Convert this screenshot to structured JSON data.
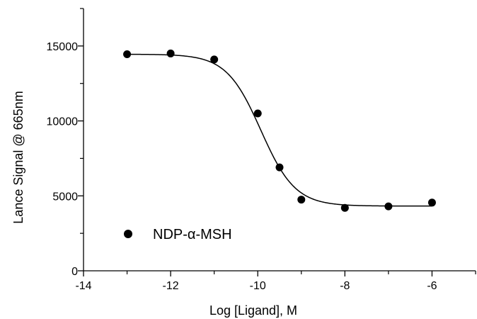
{
  "chart_data": {
    "type": "scatter",
    "title": "",
    "xlabel": "Log [Ligand], M",
    "ylabel": "Lance Signal @ 665nm",
    "xlim": [
      -14,
      -5
    ],
    "ylim": [
      0,
      17500
    ],
    "x_ticks": [
      -14,
      -12,
      -10,
      -8,
      -6
    ],
    "x_tick_labels": [
      "-14",
      "-12",
      "-10",
      "-8",
      "-6"
    ],
    "y_ticks": [
      0,
      5000,
      10000,
      15000
    ],
    "y_tick_labels": [
      "0",
      "5000",
      "10000",
      "15000"
    ],
    "grid": false,
    "legend_position": "bottom-left",
    "series": [
      {
        "name": "NDP-α-MSH",
        "marker": "filled-circle",
        "color": "#000000",
        "x": [
          -13,
          -12,
          -11,
          -10,
          -9.5,
          -9,
          -8,
          -7,
          -6
        ],
        "y": [
          14450,
          14500,
          14100,
          10500,
          6900,
          4750,
          4200,
          4300,
          4550
        ]
      }
    ],
    "fit_curve": {
      "type": "sigmoidal-dose-response",
      "color": "#000000",
      "top": 14450,
      "bottom": 4320,
      "log_ic50": -9.93,
      "hill_slope": -1.1,
      "x_range": [
        -13,
        -6
      ]
    }
  }
}
